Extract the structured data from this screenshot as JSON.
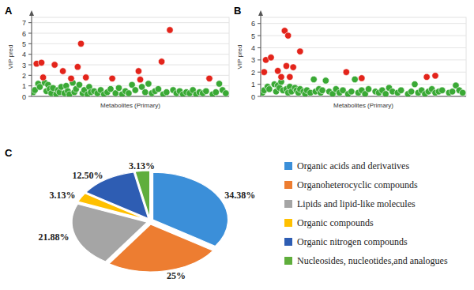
{
  "chart_data": [
    {
      "type": "scatter",
      "title": "A",
      "x_label": "Metabolites (Primary)",
      "y_label": "VIP pred",
      "xlim": [
        0,
        120
      ],
      "ylim": [
        0,
        7.5
      ],
      "yticks": [
        0,
        1,
        2,
        3,
        4,
        5,
        6,
        7
      ],
      "grid": true,
      "tick_labels": "y",
      "series": [
        {
          "color": "#e3241b",
          "x": [
            3,
            6,
            7,
            14,
            19,
            24,
            28,
            30,
            33,
            49,
            65,
            66,
            79,
            84,
            108
          ],
          "values": [
            3.1,
            3.2,
            1.8,
            3.0,
            2.4,
            1.7,
            2.8,
            5.0,
            1.8,
            1.7,
            2.4,
            1.6,
            3.3,
            6.3,
            1.7
          ]
        },
        {
          "color": "#3aa935",
          "x": [
            1,
            2,
            4,
            5,
            8,
            9,
            10,
            11,
            12,
            13,
            15,
            16,
            17,
            18,
            20,
            21,
            22,
            23,
            25,
            26,
            27,
            29,
            31,
            32,
            34,
            35,
            36,
            38,
            40,
            42,
            44,
            46,
            48,
            51,
            53,
            55,
            57,
            59,
            61,
            63,
            67,
            69,
            71,
            73,
            75,
            77,
            80,
            82,
            86,
            88,
            90,
            92,
            94,
            96,
            98,
            100,
            102,
            104,
            106,
            110,
            112,
            114,
            116,
            118
          ],
          "values": [
            0.4,
            0.6,
            1.2,
            0.9,
            1.3,
            0.5,
            1.1,
            0.7,
            0.3,
            0.8,
            0.2,
            0.6,
            0.4,
            0.9,
            0.3,
            1.0,
            0.5,
            0.2,
            1.3,
            0.4,
            0.7,
            1.1,
            0.3,
            0.6,
            0.2,
            0.9,
            0.4,
            0.5,
            0.3,
            0.6,
            0.2,
            0.4,
            0.7,
            0.3,
            0.8,
            0.2,
            0.5,
            0.3,
            1.1,
            0.6,
            0.9,
            0.4,
            1.2,
            0.3,
            0.5,
            0.7,
            0.2,
            0.4,
            0.6,
            0.3,
            0.5,
            0.2,
            0.4,
            0.3,
            0.6,
            0.2,
            0.4,
            0.3,
            0.5,
            0.2,
            0.4,
            1.2,
            0.6,
            0.3
          ]
        }
      ]
    },
    {
      "type": "scatter",
      "title": "B",
      "x_label": "Metabolites (Primary)",
      "y_label": "VIP pred",
      "xlim": [
        0,
        120
      ],
      "ylim": [
        0,
        6.5
      ],
      "yticks": [
        0,
        1,
        2,
        3,
        4,
        5,
        6
      ],
      "grid": true,
      "tick_labels": "y",
      "series": [
        {
          "color": "#e3241b",
          "x": [
            2,
            3,
            6,
            10,
            12,
            14,
            15,
            16,
            17,
            19,
            23,
            50,
            59,
            97,
            102
          ],
          "values": [
            2.0,
            3.0,
            3.2,
            2.1,
            1.6,
            5.4,
            2.5,
            5.0,
            1.6,
            2.4,
            3.7,
            2.0,
            1.5,
            1.6,
            1.7
          ]
        },
        {
          "color": "#3aa935",
          "x": [
            1,
            2,
            4,
            5,
            8,
            9,
            10,
            11,
            12,
            13,
            15,
            16,
            17,
            18,
            20,
            21,
            22,
            23,
            25,
            26,
            27,
            29,
            31,
            32,
            34,
            35,
            36,
            38,
            40,
            42,
            44,
            46,
            48,
            51,
            53,
            55,
            57,
            59,
            61,
            63,
            67,
            69,
            71,
            73,
            75,
            77,
            80,
            82,
            86,
            88,
            90,
            92,
            94,
            96,
            98,
            100,
            102,
            104,
            106,
            110,
            112,
            114,
            116,
            118
          ],
          "values": [
            0.3,
            0.5,
            0.8,
            0.6,
            1.0,
            0.4,
            0.9,
            0.7,
            1.2,
            0.5,
            0.6,
            0.3,
            0.8,
            0.4,
            0.7,
            0.5,
            0.3,
            0.6,
            0.4,
            0.2,
            0.5,
            0.3,
            1.4,
            0.4,
            0.6,
            0.3,
            0.5,
            1.3,
            0.4,
            0.2,
            0.6,
            0.3,
            0.5,
            0.2,
            0.4,
            1.4,
            0.3,
            0.5,
            0.2,
            0.6,
            0.4,
            0.3,
            0.5,
            0.2,
            0.7,
            0.4,
            0.3,
            0.5,
            0.2,
            0.4,
            1.0,
            0.3,
            0.5,
            0.2,
            0.4,
            0.6,
            0.3,
            0.4,
            0.5,
            0.3,
            0.4,
            0.9,
            0.5,
            0.3
          ]
        }
      ]
    },
    {
      "type": "pie",
      "title": "C",
      "categories": [
        "Organic acids and derivatives",
        "Organoheterocyclic compounds",
        "Lipids and lipid-like molecules",
        "Organic compounds",
        "Organic nitrogen compounds",
        "Nucleosides, nucleotides,and analogues"
      ],
      "values": [
        34.38,
        25,
        21.88,
        3.13,
        12.5,
        3.13
      ],
      "value_labels": [
        "34.38%",
        "25%",
        "21.88%",
        "3.13%",
        "12.50%",
        "3.13%"
      ],
      "colors": [
        "#3b8fd9",
        "#ed7d31",
        "#a5a5a5",
        "#ffc000",
        "#2e5db3",
        "#5fae3c"
      ],
      "data_labels": true,
      "legend": "right"
    }
  ]
}
